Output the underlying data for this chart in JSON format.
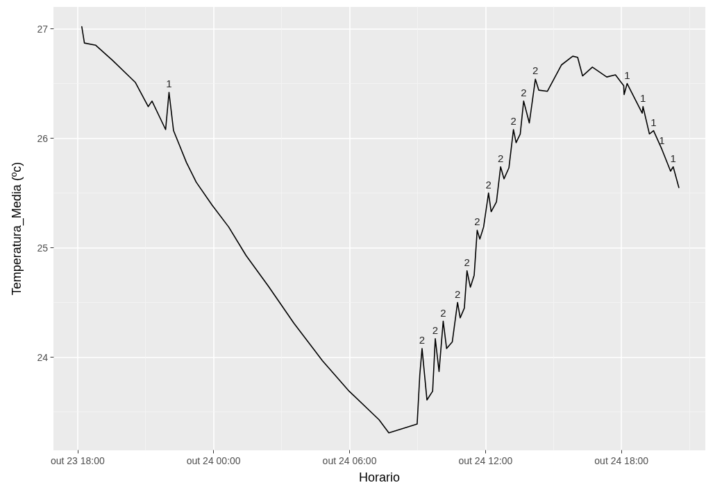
{
  "chart_data": {
    "type": "line",
    "xlabel": "Horario",
    "ylabel": "Temperatura_Media (ºc)",
    "x": [
      "--10-23T18:11",
      "--10-23T18:18",
      "--10-23T18:48",
      "--10-23T19:33",
      "--10-23T20:33",
      "--10-23T21:07",
      "--10-23T21:17",
      "--10-23T21:53",
      "--10-23T22:02",
      "--10-23T22:14",
      "--10-23T22:48",
      "--10-23T23:14",
      "--10-23T23:56",
      "--10-24T00:40",
      "--10-24T01:26",
      "--10-24T02:25",
      "--10-24T03:33",
      "--10-24T04:48",
      "--10-24T05:59",
      "--10-24T07:18",
      "--10-24T07:44",
      "--10-24T08:21",
      "--10-24T08:59",
      "--10-24T09:06",
      "--10-24T09:12",
      "--10-24T09:25",
      "--10-24T09:40",
      "--10-24T09:47",
      "--10-24T09:57",
      "--10-24T10:08",
      "--10-24T10:17",
      "--10-24T10:32",
      "--10-24T10:46",
      "--10-24T10:53",
      "--10-24T11:04",
      "--10-24T11:11",
      "--10-24T11:20",
      "--10-24T11:30",
      "--10-24T11:38",
      "--10-24T11:45",
      "--10-24T11:55",
      "--10-24T12:08",
      "--10-24T12:15",
      "--10-24T12:29",
      "--10-24T12:40",
      "--10-24T12:49",
      "--10-24T13:02",
      "--10-24T13:14",
      "--10-24T13:21",
      "--10-24T13:32",
      "--10-24T13:41",
      "--10-24T13:56",
      "--10-24T14:12",
      "--10-24T14:21",
      "--10-24T14:44",
      "--10-24T15:21",
      "--10-24T15:51",
      "--10-24T16:04",
      "--10-24T16:17",
      "--10-24T16:43",
      "--10-24T17:21",
      "--10-24T17:44",
      "--10-24T18:06",
      "--10-24T18:07",
      "--10-24T18:15",
      "--10-24T18:55",
      "--10-24T18:57",
      "--10-24T19:14",
      "--10-24T19:25",
      "--10-24T19:47",
      "--10-24T20:10",
      "--10-24T20:17",
      "--10-24T20:32"
    ],
    "series": [
      {
        "color": "#000000",
        "values": [
          27.02,
          26.87,
          26.85,
          26.71,
          26.51,
          26.29,
          26.34,
          26.08,
          26.42,
          26.07,
          25.78,
          25.6,
          25.39,
          25.19,
          24.93,
          24.65,
          24.31,
          23.97,
          23.69,
          23.43,
          23.31,
          23.35,
          23.39,
          23.84,
          24.08,
          23.61,
          23.69,
          24.17,
          23.87,
          24.33,
          24.08,
          24.14,
          24.5,
          24.36,
          24.45,
          24.79,
          24.64,
          24.75,
          25.16,
          25.08,
          25.19,
          25.5,
          25.33,
          25.42,
          25.74,
          25.63,
          25.73,
          26.08,
          25.96,
          26.04,
          26.34,
          26.14,
          26.54,
          26.44,
          26.43,
          26.67,
          26.75,
          26.74,
          26.57,
          26.65,
          26.56,
          26.58,
          26.48,
          26.4,
          26.5,
          26.23,
          26.29,
          26.04,
          26.07,
          25.9,
          25.7,
          25.74,
          25.55
        ]
      }
    ],
    "xlim": [
      "--10-23T16:56",
      "--10-24T21:42"
    ],
    "xticks": [
      {
        "value": "--10-23T18:00",
        "label": "out 23 18:00"
      },
      {
        "value": "--10-24T00:00",
        "label": "out 24 00:00"
      },
      {
        "value": "--10-24T06:00",
        "label": "out 24 06:00"
      },
      {
        "value": "--10-24T12:00",
        "label": "out 24 12:00"
      },
      {
        "value": "--10-24T18:00",
        "label": "out 24 18:00"
      }
    ],
    "ylim": [
      23.15,
      27.2
    ],
    "yticks": [
      24,
      25,
      26,
      27
    ],
    "grid": true,
    "marker": "none",
    "line_style": "solid",
    "annotations": [
      {
        "text": "1",
        "x": "--10-23T22:02",
        "y": 26.42
      },
      {
        "text": "2",
        "x": "--10-24T09:12",
        "y": 24.08
      },
      {
        "text": "2",
        "x": "--10-24T09:47",
        "y": 24.17
      },
      {
        "text": "2",
        "x": "--10-24T10:08",
        "y": 24.33
      },
      {
        "text": "2",
        "x": "--10-24T10:46",
        "y": 24.5
      },
      {
        "text": "2",
        "x": "--10-24T11:11",
        "y": 24.79
      },
      {
        "text": "2",
        "x": "--10-24T11:38",
        "y": 25.16
      },
      {
        "text": "2",
        "x": "--10-24T12:08",
        "y": 25.5
      },
      {
        "text": "2",
        "x": "--10-24T12:40",
        "y": 25.74
      },
      {
        "text": "2",
        "x": "--10-24T13:14",
        "y": 26.08
      },
      {
        "text": "2",
        "x": "--10-24T13:41",
        "y": 26.34
      },
      {
        "text": "2",
        "x": "--10-24T14:12",
        "y": 26.54
      },
      {
        "text": "1",
        "x": "--10-24T18:15",
        "y": 26.5
      },
      {
        "text": "1",
        "x": "--10-24T18:57",
        "y": 26.29
      },
      {
        "text": "1",
        "x": "--10-24T19:25",
        "y": 26.07
      },
      {
        "text": "1",
        "x": "--10-24T19:47",
        "y": 25.9
      },
      {
        "text": "1",
        "x": "--10-24T20:17",
        "y": 25.74
      }
    ]
  }
}
